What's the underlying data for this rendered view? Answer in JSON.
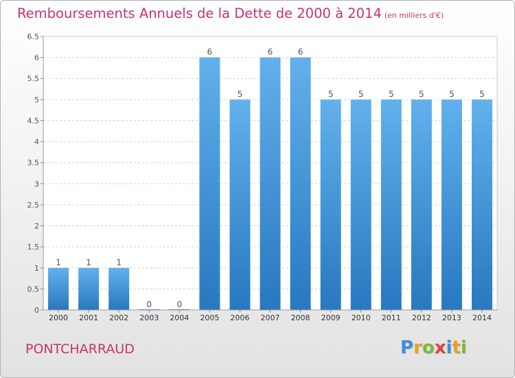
{
  "page": {
    "title": "Remboursements Annuels de la Dette de 2000 à 2014",
    "subtitle": "(en milliers d'€)",
    "commune": "PONTCHARRAUD",
    "logo": {
      "letters": [
        "P",
        "r",
        "o",
        "x",
        "i",
        "t",
        "i"
      ],
      "colors": [
        "#3a8fd8",
        "#e8a020",
        "#7ab83a",
        "#e04040",
        "#3a8fd8",
        "#e8a020",
        "#7ab83a"
      ]
    }
  },
  "chart_data": {
    "type": "bar",
    "categories": [
      "2000",
      "2001",
      "2002",
      "2003",
      "2004",
      "2005",
      "2006",
      "2007",
      "2008",
      "2009",
      "2010",
      "2011",
      "2012",
      "2013",
      "2014"
    ],
    "values": [
      1,
      1,
      1,
      0,
      0,
      6,
      5,
      6,
      6,
      5,
      5,
      5,
      5,
      5,
      5
    ],
    "data_labels": [
      "1",
      "1",
      "1",
      "0",
      "0",
      "6",
      "5",
      "6",
      "6",
      "5",
      "5",
      "5",
      "5",
      "5",
      "5"
    ],
    "title": "Remboursements Annuels de la Dette de 2000 à 2014",
    "subtitle": "(en milliers d'€)",
    "ylim": [
      0,
      6.5
    ],
    "yticks": [
      0,
      0.5,
      1,
      1.5,
      2,
      2.5,
      3,
      3.5,
      4,
      4.5,
      5,
      5.5,
      6,
      6.5
    ],
    "ytick_labels": [
      "0",
      "0.5",
      "1",
      "1.5",
      "2",
      "2.5",
      "3",
      "3.5",
      "4",
      "4.5",
      "5",
      "5.5",
      "6",
      "6.5"
    ],
    "grid": true,
    "bar_color": "#3c8fd6",
    "bar_highlight": "#62b0ec"
  }
}
